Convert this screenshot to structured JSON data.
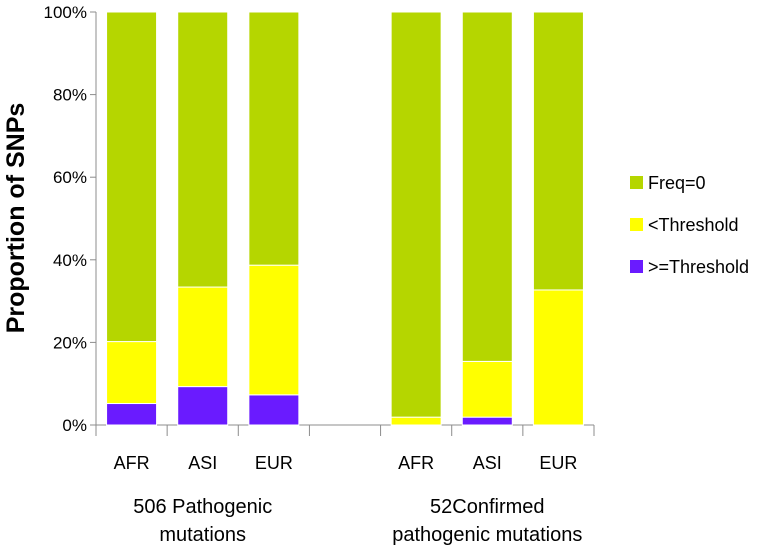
{
  "chart_data": {
    "type": "bar",
    "stacked": true,
    "percent_stacked": true,
    "ylabel": "Proportion of SNPs",
    "ylim": [
      0,
      100
    ],
    "y_ticks": [
      "0%",
      "20%",
      "40%",
      "60%",
      "80%",
      "100%"
    ],
    "groups": [
      {
        "label_lines": [
          "506 Pathogenic",
          "mutations"
        ],
        "categories": [
          "AFR",
          "ASI",
          "EUR"
        ]
      },
      {
        "label_lines": [
          "52Confirmed",
          "pathogenic mutations"
        ],
        "categories": [
          "AFR",
          "ASI",
          "EUR"
        ]
      }
    ],
    "categories": [
      "AFR",
      "ASI",
      "EUR",
      "AFR",
      "ASI",
      "EUR"
    ],
    "series": [
      {
        "name": ">=Threshold",
        "color": "#6A1BFF",
        "values": [
          5.2,
          9.3,
          7.3,
          0,
          1.9,
          0
        ]
      },
      {
        "name": "<Threshold",
        "color": "#FFFF00",
        "values": [
          15.0,
          24.1,
          31.4,
          1.9,
          13.5,
          32.7
        ]
      },
      {
        "name": "Freq=0",
        "color": "#B5D600",
        "values": [
          79.8,
          66.6,
          61.3,
          98.1,
          84.6,
          67.3
        ]
      }
    ],
    "legend_order": [
      "Freq=0",
      "<Threshold",
      ">=Threshold"
    ],
    "legend_position": "right",
    "grid": false
  }
}
